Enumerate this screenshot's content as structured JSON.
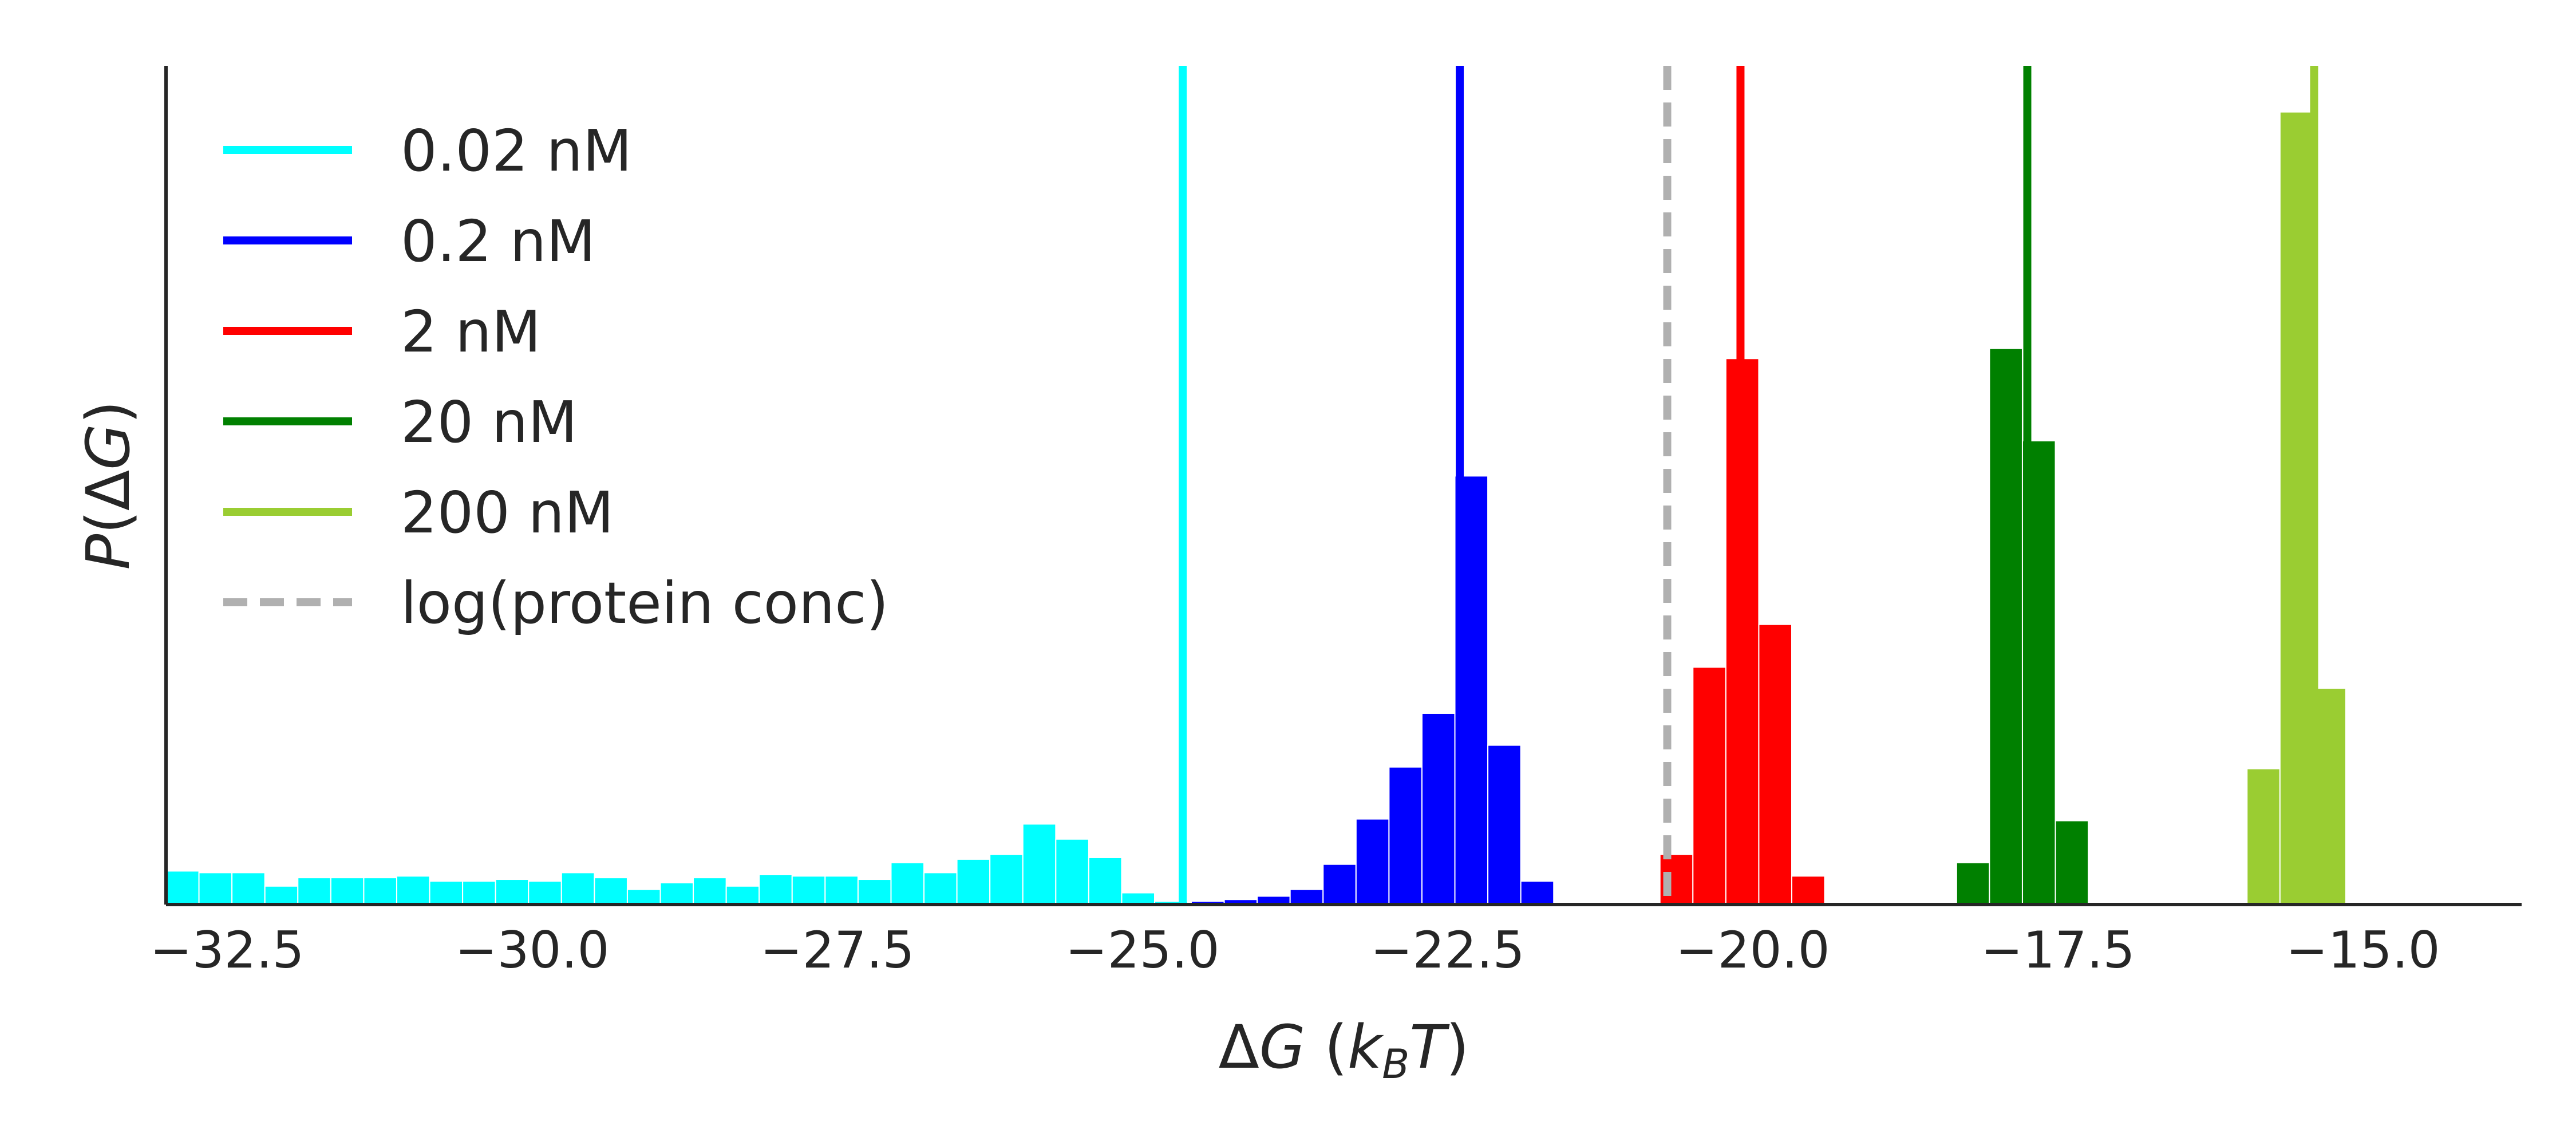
{
  "chart_data": {
    "type": "bar",
    "subtype": "histogram",
    "xlabel": "ΔG (k_B T)",
    "xlabel_parts": {
      "delta": "Δ",
      "G": "G",
      "open": " (",
      "k": "k",
      "sub": "B",
      "T": "T",
      "close": ")"
    },
    "ylabel": "P(ΔG)",
    "ylabel_parts": {
      "P": "P",
      "open": "(",
      "delta": "Δ",
      "G": "G",
      "close": ")"
    },
    "xlim": [
      -33.0,
      -13.7
    ],
    "ylim": [
      0,
      1.0
    ],
    "x_ticks": [
      -32.5,
      -30.0,
      -27.5,
      -25.0,
      -22.5,
      -20.0,
      -17.5,
      -15.0
    ],
    "x_tick_labels": [
      "−32.5",
      "−30.0",
      "−27.5",
      "−25.0",
      "−22.5",
      "−20.0",
      "−17.5",
      "−15.0"
    ],
    "y_ticks": [],
    "grid": false,
    "legend_position": "upper-left",
    "series": [
      {
        "name": "0.02 nM",
        "color": "#00ffff",
        "marker_x": -24.67,
        "bins": [
          {
            "x0": -33.0,
            "x1": -32.73,
            "y": 0.04
          },
          {
            "x0": -32.73,
            "x1": -32.46,
            "y": 0.038
          },
          {
            "x0": -32.46,
            "x1": -32.19,
            "y": 0.038
          },
          {
            "x0": -32.19,
            "x1": -31.92,
            "y": 0.022
          },
          {
            "x0": -31.92,
            "x1": -31.65,
            "y": 0.032
          },
          {
            "x0": -31.65,
            "x1": -31.38,
            "y": 0.032
          },
          {
            "x0": -31.38,
            "x1": -31.11,
            "y": 0.032
          },
          {
            "x0": -31.11,
            "x1": -30.84,
            "y": 0.034
          },
          {
            "x0": -30.84,
            "x1": -30.57,
            "y": 0.028
          },
          {
            "x0": -30.57,
            "x1": -30.3,
            "y": 0.028
          },
          {
            "x0": -30.3,
            "x1": -30.03,
            "y": 0.03
          },
          {
            "x0": -30.03,
            "x1": -29.76,
            "y": 0.028
          },
          {
            "x0": -29.76,
            "x1": -29.49,
            "y": 0.038
          },
          {
            "x0": -29.49,
            "x1": -29.22,
            "y": 0.032
          },
          {
            "x0": -29.22,
            "x1": -28.95,
            "y": 0.018
          },
          {
            "x0": -28.95,
            "x1": -28.68,
            "y": 0.026
          },
          {
            "x0": -28.68,
            "x1": -28.41,
            "y": 0.032
          },
          {
            "x0": -28.41,
            "x1": -28.14,
            "y": 0.022
          },
          {
            "x0": -28.14,
            "x1": -27.87,
            "y": 0.036
          },
          {
            "x0": -27.87,
            "x1": -27.6,
            "y": 0.034
          },
          {
            "x0": -27.6,
            "x1": -27.33,
            "y": 0.034
          },
          {
            "x0": -27.33,
            "x1": -27.06,
            "y": 0.03
          },
          {
            "x0": -27.06,
            "x1": -26.79,
            "y": 0.05
          },
          {
            "x0": -26.79,
            "x1": -26.52,
            "y": 0.038
          },
          {
            "x0": -26.52,
            "x1": -26.25,
            "y": 0.054
          },
          {
            "x0": -26.25,
            "x1": -25.98,
            "y": 0.06
          },
          {
            "x0": -25.98,
            "x1": -25.71,
            "y": 0.096
          },
          {
            "x0": -25.71,
            "x1": -25.44,
            "y": 0.078
          },
          {
            "x0": -25.44,
            "x1": -25.17,
            "y": 0.056
          },
          {
            "x0": -25.17,
            "x1": -24.9,
            "y": 0.014
          },
          {
            "x0": -24.9,
            "x1": -24.63,
            "y": 0.004
          }
        ]
      },
      {
        "name": "0.2 nM",
        "color": "#0000ff",
        "marker_x": -22.4,
        "bins": [
          {
            "x0": -24.6,
            "x1": -24.33,
            "y": 0.004
          },
          {
            "x0": -24.33,
            "x1": -24.06,
            "y": 0.006
          },
          {
            "x0": -24.06,
            "x1": -23.79,
            "y": 0.01
          },
          {
            "x0": -23.79,
            "x1": -23.52,
            "y": 0.018
          },
          {
            "x0": -23.52,
            "x1": -23.25,
            "y": 0.048
          },
          {
            "x0": -23.25,
            "x1": -22.98,
            "y": 0.102
          },
          {
            "x0": -22.98,
            "x1": -22.71,
            "y": 0.164
          },
          {
            "x0": -22.71,
            "x1": -22.44,
            "y": 0.228
          },
          {
            "x0": -22.44,
            "x1": -22.17,
            "y": 0.511
          },
          {
            "x0": -22.17,
            "x1": -21.9,
            "y": 0.19
          },
          {
            "x0": -21.9,
            "x1": -21.63,
            "y": 0.028
          }
        ]
      },
      {
        "name": "2 nM",
        "color": "#ff0000",
        "marker_x": -20.1,
        "bins": [
          {
            "x0": -20.76,
            "x1": -20.49,
            "y": 0.06
          },
          {
            "x0": -20.49,
            "x1": -20.22,
            "y": 0.283
          },
          {
            "x0": -20.22,
            "x1": -19.95,
            "y": 0.651
          },
          {
            "x0": -19.95,
            "x1": -19.68,
            "y": 0.334
          },
          {
            "x0": -19.68,
            "x1": -19.41,
            "y": 0.034
          }
        ]
      },
      {
        "name": "20 nM",
        "color": "#008000",
        "marker_x": -17.75,
        "bins": [
          {
            "x0": -18.33,
            "x1": -18.06,
            "y": 0.05
          },
          {
            "x0": -18.06,
            "x1": -17.79,
            "y": 0.663
          },
          {
            "x0": -17.79,
            "x1": -17.52,
            "y": 0.553
          },
          {
            "x0": -17.52,
            "x1": -17.25,
            "y": 0.1
          }
        ]
      },
      {
        "name": "200 nM",
        "color": "#9acd32",
        "marker_x": -15.4,
        "bins": [
          {
            "x0": -15.95,
            "x1": -15.68,
            "y": 0.162
          },
          {
            "x0": -15.68,
            "x1": -15.41,
            "y": 0.945
          },
          {
            "x0": -15.41,
            "x1": -15.14,
            "y": 0.258
          }
        ]
      }
    ],
    "reference_line": {
      "name": "log(protein conc)",
      "x": -20.7,
      "color": "#b0b0b0",
      "style": "dashed"
    }
  }
}
